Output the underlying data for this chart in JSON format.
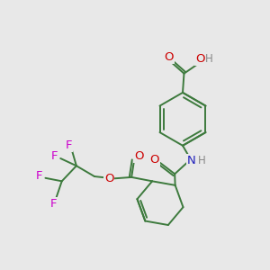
{
  "background_color": "#e8e8e8",
  "bond_color": "#3d7a3d",
  "bond_width": 1.4,
  "atom_colors": {
    "O": "#cc0000",
    "N": "#2020bb",
    "F": "#cc00cc",
    "H": "#888888",
    "C": "#3d7a3d"
  },
  "font_size": 9.5
}
